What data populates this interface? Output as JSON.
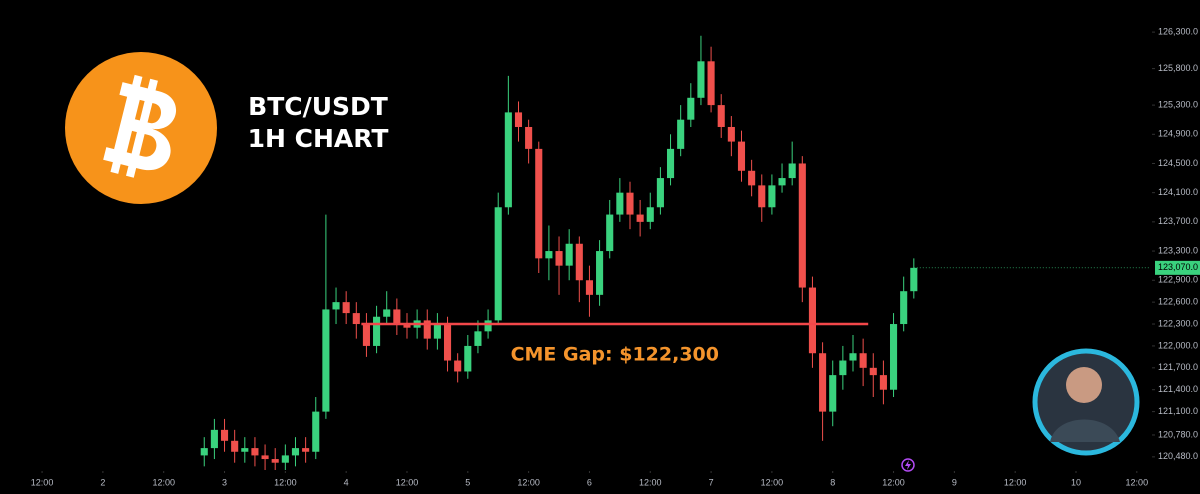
{
  "chart_data": {
    "type": "candlestick",
    "title": "BTC/USDT",
    "subtitle": "1H CHART",
    "up_color": "#3ad27e",
    "down_color": "#f0504c",
    "x": [
      32,
      34,
      36,
      38,
      40,
      42,
      44,
      46,
      48,
      50,
      52,
      54,
      56,
      58,
      60,
      62,
      64,
      66,
      68,
      70,
      72,
      74,
      76,
      78,
      80,
      82,
      84,
      86,
      88,
      90,
      92,
      94,
      96,
      98,
      100,
      102,
      104,
      106,
      108,
      110,
      112,
      114,
      116,
      118,
      120,
      122,
      124,
      126,
      128,
      130,
      132,
      134,
      136,
      138,
      140,
      142,
      144,
      146,
      148,
      150,
      152,
      154,
      156,
      158,
      160,
      162,
      164,
      166,
      168,
      170,
      172
    ],
    "open": [
      120500,
      120600,
      120850,
      120700,
      120550,
      120600,
      120500,
      120450,
      120400,
      120500,
      120600,
      120550,
      121100,
      122500,
      122600,
      122450,
      122300,
      122000,
      122400,
      122500,
      122300,
      122250,
      122350,
      122100,
      122300,
      121800,
      121650,
      122000,
      122200,
      122350,
      123900,
      125200,
      125000,
      124700,
      123200,
      123300,
      123100,
      123400,
      122900,
      122700,
      123300,
      123800,
      124100,
      123800,
      123700,
      123900,
      124300,
      124700,
      125100,
      125400,
      125900,
      125300,
      125000,
      124800,
      124400,
      124200,
      123900,
      124200,
      124300,
      124500,
      122800,
      121900,
      121100,
      121600,
      121800,
      121900,
      121700,
      121600,
      121400,
      122300,
      122750
    ],
    "high": [
      120750,
      121000,
      121000,
      120850,
      120750,
      120750,
      120650,
      120600,
      120650,
      120750,
      120750,
      121300,
      123800,
      122800,
      122750,
      122600,
      122450,
      122550,
      122750,
      122650,
      122450,
      122500,
      122500,
      122450,
      122400,
      121900,
      122150,
      122350,
      122500,
      124100,
      125700,
      125350,
      125100,
      124800,
      123650,
      123500,
      123600,
      123500,
      123100,
      123450,
      124000,
      124300,
      124250,
      124000,
      124100,
      124450,
      124900,
      125300,
      125600,
      126250,
      126100,
      125450,
      125150,
      124950,
      124550,
      124350,
      124350,
      124500,
      124800,
      124600,
      122950,
      122050,
      121800,
      122000,
      122150,
      122100,
      121900,
      121800,
      122450,
      122950,
      123200
    ],
    "low": [
      120350,
      120450,
      120550,
      120400,
      120400,
      120350,
      120300,
      120300,
      120300,
      120350,
      120400,
      120450,
      121000,
      122300,
      122300,
      122100,
      121850,
      121900,
      122300,
      122150,
      122100,
      122100,
      121950,
      121950,
      121650,
      121500,
      121550,
      121900,
      122100,
      122300,
      123800,
      124800,
      124500,
      123000,
      122900,
      122700,
      122900,
      122600,
      122400,
      122550,
      123200,
      123700,
      123600,
      123500,
      123600,
      123800,
      124200,
      124600,
      125000,
      125300,
      125200,
      124850,
      124600,
      124250,
      124050,
      123700,
      123800,
      124100,
      124200,
      122600,
      121700,
      120700,
      120900,
      121400,
      121650,
      121450,
      121300,
      121200,
      121300,
      122200,
      122650
    ],
    "close": [
      120600,
      120850,
      120700,
      120550,
      120600,
      120500,
      120450,
      120400,
      120500,
      120600,
      120550,
      121100,
      122500,
      122600,
      122450,
      122300,
      122000,
      122400,
      122500,
      122300,
      122250,
      122350,
      122100,
      122300,
      121800,
      121650,
      122000,
      122200,
      122350,
      123900,
      125200,
      125000,
      124700,
      123200,
      123300,
      123100,
      123400,
      122900,
      122700,
      123300,
      123800,
      124100,
      123800,
      123700,
      123900,
      124300,
      124700,
      125100,
      125400,
      125900,
      125300,
      125000,
      124800,
      124400,
      124200,
      123900,
      124200,
      124300,
      124500,
      122800,
      121900,
      121100,
      121600,
      121800,
      121900,
      121700,
      121600,
      121400,
      122300,
      122750,
      123070
    ],
    "xlim": [
      -8.3,
      218.6
    ],
    "ylim": [
      120300,
      126740
    ],
    "xticks": [
      {
        "value": 0,
        "label": "12:00"
      },
      {
        "value": 12,
        "label": "2"
      },
      {
        "value": 24,
        "label": "12:00"
      },
      {
        "value": 36,
        "label": "3"
      },
      {
        "value": 48,
        "label": "12:00"
      },
      {
        "value": 60,
        "label": "4"
      },
      {
        "value": 72,
        "label": "12:00"
      },
      {
        "value": 84,
        "label": "5"
      },
      {
        "value": 96,
        "label": "12:00"
      },
      {
        "value": 108,
        "label": "6"
      },
      {
        "value": 120,
        "label": "12:00"
      },
      {
        "value": 132,
        "label": "7"
      },
      {
        "value": 144,
        "label": "12:00"
      },
      {
        "value": 156,
        "label": "8"
      },
      {
        "value": 168,
        "label": "12:00"
      },
      {
        "value": 180,
        "label": "9"
      },
      {
        "value": 192,
        "label": "12:00"
      },
      {
        "value": 204,
        "label": "10"
      },
      {
        "value": 216,
        "label": "12:00"
      }
    ],
    "yticks": [
      {
        "value": 126300,
        "label": "126,300.0"
      },
      {
        "value": 125800,
        "label": "125,800.0"
      },
      {
        "value": 125300,
        "label": "125,300.0"
      },
      {
        "value": 124900,
        "label": "124,900.0"
      },
      {
        "value": 124500,
        "label": "124,500.0"
      },
      {
        "value": 124100,
        "label": "124,100.0"
      },
      {
        "value": 123700,
        "label": "123,700.0"
      },
      {
        "value": 123300,
        "label": "123,300.0"
      },
      {
        "value": 122900,
        "label": "122,900.0"
      },
      {
        "value": 122600,
        "label": "122,600.0"
      },
      {
        "value": 122300,
        "label": "122,300.0"
      },
      {
        "value": 122000,
        "label": "122,000.0"
      },
      {
        "value": 121700,
        "label": "121,700.0"
      },
      {
        "value": 121400,
        "label": "121,400.0"
      },
      {
        "value": 121100,
        "label": "121,100.0"
      },
      {
        "value": 120780,
        "label": "120,780.0"
      },
      {
        "value": 120480,
        "label": "120,480.0"
      }
    ],
    "last_price": {
      "value": 123070,
      "label": "123,070.0"
    },
    "gap": {
      "label": "CME Gap: $122,300",
      "value": 122300,
      "x": [
        63,
        163
      ],
      "color": "#f2474a"
    }
  }
}
